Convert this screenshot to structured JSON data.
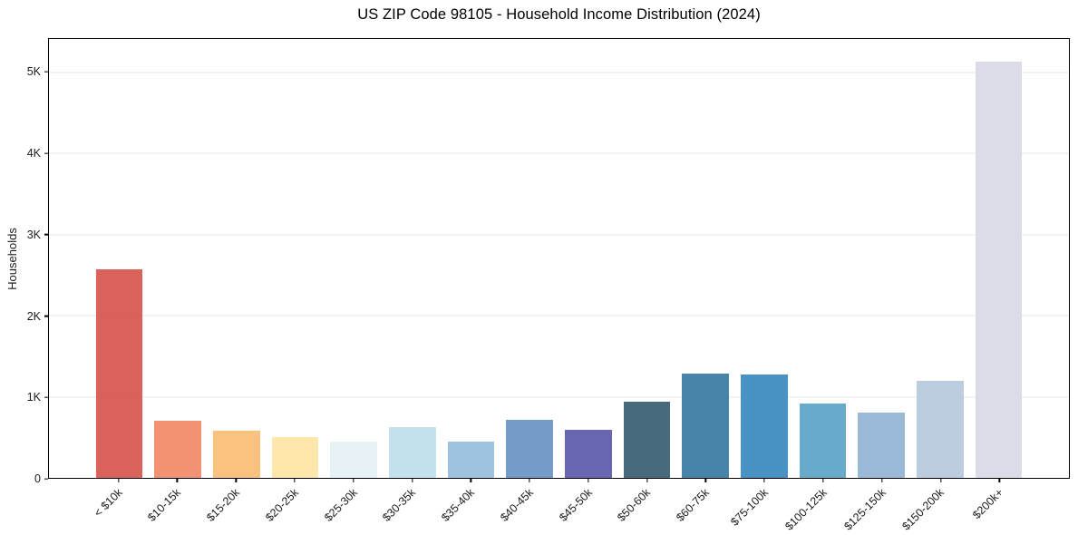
{
  "chart_data": {
    "type": "bar",
    "title": "US ZIP Code 98105 - Household Income Distribution (2024)",
    "xlabel": "",
    "ylabel": "Households",
    "categories": [
      "< $10k",
      "$10-15k",
      "$15-20k",
      "$20-25k",
      "$25-30k",
      "$30-35k",
      "$35-40k",
      "$40-45k",
      "$45-50k",
      "$50-60k",
      "$60-75k",
      "$75-100k",
      "$100-125k",
      "$125-150k",
      "$150-200k",
      "$200k+"
    ],
    "values": [
      2570,
      710,
      580,
      500,
      445,
      625,
      450,
      720,
      595,
      945,
      1290,
      1275,
      920,
      810,
      1200,
      5135
    ],
    "bar_colors": [
      "#d6564e",
      "#f28a67",
      "#fabd74",
      "#fde5a4",
      "#e4f1f5",
      "#bfe0ec",
      "#96bedd",
      "#6b93c4",
      "#5c59ab",
      "#3a5f73",
      "#3a7ba3",
      "#3b8ac0",
      "#5da4c6",
      "#92b5d4",
      "#b8c9de",
      "#d8d9e6"
    ],
    "y_ticks": [
      "0",
      "1K",
      "2K",
      "3K",
      "4K",
      "5K"
    ],
    "y_tick_values": [
      0,
      1000,
      2000,
      3000,
      4000,
      5000
    ],
    "ylim": [
      0,
      5415
    ],
    "grid": "horizontal",
    "legend": "none"
  },
  "colors": {
    "grid": "#e6e6e6",
    "spine": "#000000",
    "background": "#ffffff",
    "tick_text": "#1a1a1a",
    "title_text": "#000000"
  }
}
